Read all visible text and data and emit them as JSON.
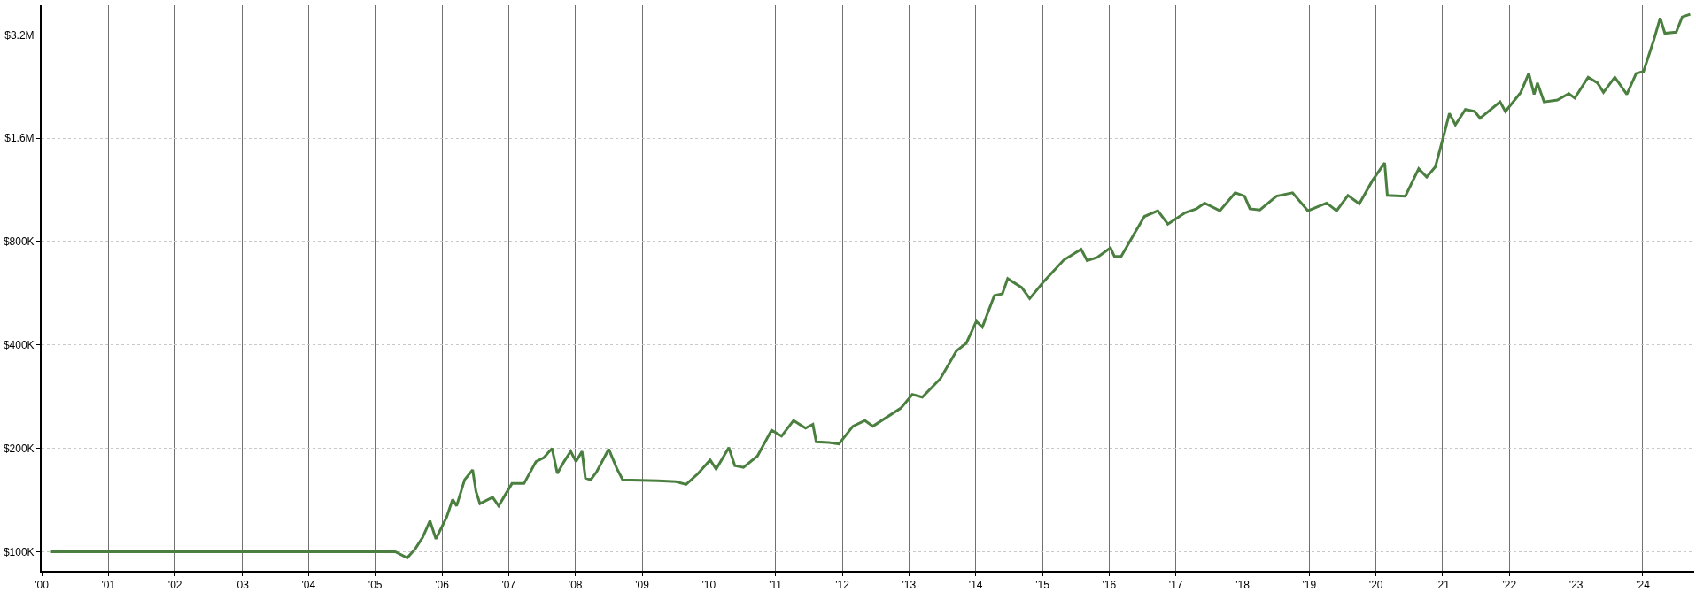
{
  "chart_data": {
    "type": "line",
    "log": true,
    "grid": true,
    "marker": "none",
    "line_style": "solid",
    "xlim": [
      2000,
      2024.77
    ],
    "xticks": [
      {
        "value": 2000,
        "label": "'00"
      },
      {
        "value": 2001,
        "label": "'01"
      },
      {
        "value": 2002,
        "label": "'02"
      },
      {
        "value": 2003,
        "label": "'03"
      },
      {
        "value": 2004,
        "label": "'04"
      },
      {
        "value": 2005,
        "label": "'05"
      },
      {
        "value": 2006,
        "label": "'06"
      },
      {
        "value": 2007,
        "label": "'07"
      },
      {
        "value": 2008,
        "label": "'08"
      },
      {
        "value": 2009,
        "label": "'09"
      },
      {
        "value": 2010,
        "label": "'10"
      },
      {
        "value": 2011,
        "label": "'11"
      },
      {
        "value": 2012,
        "label": "'12"
      },
      {
        "value": 2013,
        "label": "'13"
      },
      {
        "value": 2014,
        "label": "'14"
      },
      {
        "value": 2015,
        "label": "'15"
      },
      {
        "value": 2016,
        "label": "'16"
      },
      {
        "value": 2017,
        "label": "'17"
      },
      {
        "value": 2018,
        "label": "'18"
      },
      {
        "value": 2019,
        "label": "'19"
      },
      {
        "value": 2020,
        "label": "'20"
      },
      {
        "value": 2021,
        "label": "'21"
      },
      {
        "value": 2022,
        "label": "'22"
      },
      {
        "value": 2023,
        "label": "'23"
      },
      {
        "value": 2024,
        "label": "'24"
      }
    ],
    "ylim": [
      88000,
      3900000
    ],
    "yticks": [
      {
        "value": 100000,
        "label": "$100K"
      },
      {
        "value": 200000,
        "label": "$200K"
      },
      {
        "value": 400000,
        "label": "$400K"
      },
      {
        "value": 800000,
        "label": "$800K"
      },
      {
        "value": 1600000,
        "label": "$1.6M"
      },
      {
        "value": 3200000,
        "label": "$3.2M"
      }
    ],
    "series": [
      {
        "color": "#4a7f3f",
        "x": [
          2000.14,
          2005.3,
          2005.48,
          2005.6,
          2005.71,
          2005.82,
          2005.91,
          2006.07,
          2006.16,
          2006.22,
          2006.34,
          2006.46,
          2006.51,
          2006.57,
          2006.76,
          2006.85,
          2007.05,
          2007.23,
          2007.41,
          2007.53,
          2007.65,
          2007.73,
          2007.83,
          2007.93,
          2008.01,
          2008.1,
          2008.15,
          2008.23,
          2008.32,
          2008.5,
          2008.62,
          2008.71,
          2009.24,
          2009.51,
          2009.66,
          2009.84,
          2010.02,
          2010.11,
          2010.3,
          2010.39,
          2010.52,
          2010.73,
          2010.94,
          2011.09,
          2011.27,
          2011.45,
          2011.56,
          2011.61,
          2011.8,
          2011.95,
          2012.16,
          2012.34,
          2012.46,
          2012.88,
          2013.05,
          2013.2,
          2013.47,
          2013.71,
          2013.86,
          2014.01,
          2014.1,
          2014.28,
          2014.4,
          2014.48,
          2014.69,
          2014.81,
          2015.02,
          2015.32,
          2015.58,
          2015.67,
          2015.82,
          2016.02,
          2016.08,
          2016.18,
          2016.39,
          2016.53,
          2016.73,
          2016.88,
          2017.14,
          2017.31,
          2017.43,
          2017.66,
          2017.89,
          2018.03,
          2018.11,
          2018.26,
          2018.51,
          2018.75,
          2018.98,
          2019.26,
          2019.41,
          2019.58,
          2019.75,
          2019.95,
          2020.13,
          2020.17,
          2020.44,
          2020.64,
          2020.76,
          2020.89,
          2021.02,
          2021.1,
          2021.19,
          2021.34,
          2021.48,
          2021.56,
          2021.86,
          2021.94,
          2022.17,
          2022.29,
          2022.37,
          2022.42,
          2022.52,
          2022.72,
          2022.89,
          2022.98,
          2023.18,
          2023.32,
          2023.41,
          2023.58,
          2023.76,
          2023.9,
          2024.01,
          2024.16,
          2024.26,
          2024.33,
          2024.5,
          2024.59,
          2024.71
        ],
        "values": [
          100000,
          100000,
          96000,
          102000,
          110000,
          123000,
          109000,
          126000,
          142000,
          136000,
          162000,
          173000,
          150000,
          138000,
          144000,
          136000,
          158000,
          158000,
          183000,
          188000,
          200000,
          169000,
          183000,
          196000,
          183000,
          196000,
          164000,
          162000,
          171000,
          199000,
          175000,
          162000,
          161000,
          160000,
          157000,
          169000,
          185000,
          174000,
          201000,
          178000,
          176000,
          190000,
          226000,
          217000,
          241000,
          229000,
          235000,
          209000,
          208000,
          206000,
          232000,
          241000,
          232000,
          262000,
          287000,
          282000,
          319000,
          384000,
          405000,
          469000,
          451000,
          557000,
          564000,
          624000,
          588000,
          546000,
          612000,
          707000,
          760000,
          704000,
          719000,
          767000,
          724000,
          724000,
          852000,
          947000,
          984000,
          900000,
          971000,
          997000,
          1036000,
          984000,
          1110000,
          1085000,
          997000,
          989000,
          1085000,
          1110000,
          984000,
          1036000,
          984000,
          1090000,
          1031000,
          1207000,
          1355000,
          1090000,
          1085000,
          1304000,
          1233000,
          1321000,
          1642000,
          1890000,
          1750000,
          1940000,
          1914000,
          1828000,
          2041000,
          1914000,
          2175000,
          2471000,
          2147000,
          2318000,
          2041000,
          2066000,
          2158000,
          2093000,
          2409000,
          2318000,
          2175000,
          2409000,
          2147000,
          2471000,
          2503000,
          3072000,
          3581000,
          3234000,
          3258000,
          3607000,
          3673000
        ]
      }
    ]
  }
}
